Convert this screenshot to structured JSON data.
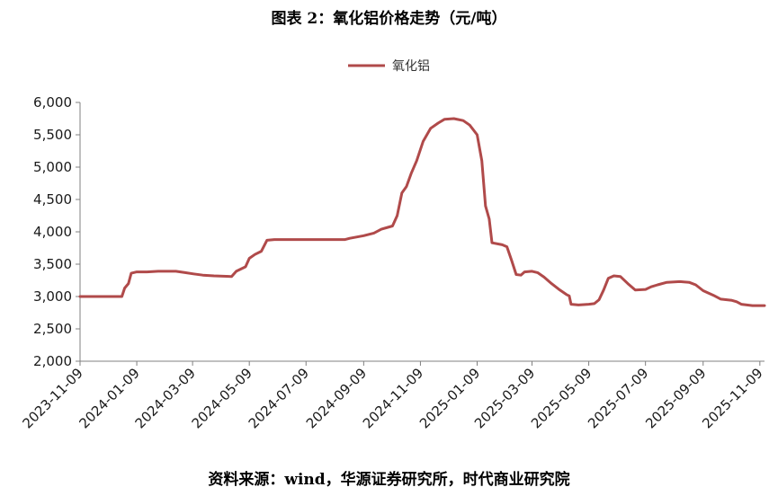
{
  "title": "图表 2：氧化铝价格走势（元/吨）",
  "source": "资料来源：wind，华源证券研究所，时代商业研究院",
  "colors": {
    "series": "#B04A4A",
    "axis": "#808080"
  },
  "chart_data": {
    "type": "line",
    "title": "图表 2：氧化铝价格走势（元/吨）",
    "legend_position": "top-center",
    "grid": false,
    "ylim": [
      2000,
      6000
    ],
    "yticks": [
      "2,000",
      "2,500",
      "3,000",
      "3,500",
      "4,000",
      "4,500",
      "5,000",
      "5,500",
      "6,000"
    ],
    "xlim": [
      "2023-11-09",
      "2025-11-14"
    ],
    "xticks": [
      "2023-11-09",
      "2024-01-09",
      "2024-03-09",
      "2024-05-09",
      "2024-07-09",
      "2024-09-09",
      "2024-11-09",
      "2025-01-09",
      "2025-03-09",
      "2025-05-09",
      "2025-07-09",
      "2025-09-09",
      "2025-11-09"
    ],
    "series": [
      {
        "name": "氧化铝",
        "points": [
          [
            "2023-11-09",
            3000
          ],
          [
            "2023-12-10",
            3000
          ],
          [
            "2023-12-24",
            3000
          ],
          [
            "2023-12-27",
            3130
          ],
          [
            "2023-12-31",
            3200
          ],
          [
            "2024-01-03",
            3360
          ],
          [
            "2024-01-09",
            3380
          ],
          [
            "2024-01-20",
            3380
          ],
          [
            "2024-02-01",
            3390
          ],
          [
            "2024-02-20",
            3390
          ],
          [
            "2024-03-01",
            3370
          ],
          [
            "2024-03-10",
            3350
          ],
          [
            "2024-03-20",
            3330
          ],
          [
            "2024-04-01",
            3320
          ],
          [
            "2024-04-20",
            3310
          ],
          [
            "2024-04-25",
            3390
          ],
          [
            "2024-05-05",
            3460
          ],
          [
            "2024-05-09",
            3590
          ],
          [
            "2024-05-15",
            3650
          ],
          [
            "2024-05-22",
            3700
          ],
          [
            "2024-05-28",
            3870
          ],
          [
            "2024-06-05",
            3880
          ],
          [
            "2024-06-20",
            3880
          ],
          [
            "2024-07-09",
            3880
          ],
          [
            "2024-08-01",
            3880
          ],
          [
            "2024-08-20",
            3880
          ],
          [
            "2024-08-25",
            3900
          ],
          [
            "2024-09-09",
            3940
          ],
          [
            "2024-09-20",
            3980
          ],
          [
            "2024-09-28",
            4040
          ],
          [
            "2024-10-05",
            4070
          ],
          [
            "2024-10-10",
            4090
          ],
          [
            "2024-10-15",
            4250
          ],
          [
            "2024-10-20",
            4600
          ],
          [
            "2024-10-25",
            4700
          ],
          [
            "2024-10-30",
            4900
          ],
          [
            "2024-11-05",
            5100
          ],
          [
            "2024-11-12",
            5400
          ],
          [
            "2024-11-20",
            5600
          ],
          [
            "2024-11-28",
            5680
          ],
          [
            "2024-12-05",
            5740
          ],
          [
            "2024-12-15",
            5750
          ],
          [
            "2024-12-25",
            5720
          ],
          [
            "2025-01-01",
            5650
          ],
          [
            "2025-01-09",
            5500
          ],
          [
            "2025-01-14",
            5100
          ],
          [
            "2025-01-18",
            4400
          ],
          [
            "2025-01-22",
            4200
          ],
          [
            "2025-01-25",
            3830
          ],
          [
            "2025-02-05",
            3800
          ],
          [
            "2025-02-10",
            3770
          ],
          [
            "2025-02-15",
            3560
          ],
          [
            "2025-02-20",
            3340
          ],
          [
            "2025-02-25",
            3330
          ],
          [
            "2025-03-01",
            3380
          ],
          [
            "2025-03-09",
            3390
          ],
          [
            "2025-03-15",
            3370
          ],
          [
            "2025-03-22",
            3300
          ],
          [
            "2025-03-30",
            3200
          ],
          [
            "2025-04-08",
            3100
          ],
          [
            "2025-04-15",
            3030
          ],
          [
            "2025-04-18",
            3010
          ],
          [
            "2025-04-20",
            2880
          ],
          [
            "2025-04-28",
            2870
          ],
          [
            "2025-05-09",
            2880
          ],
          [
            "2025-05-15",
            2890
          ],
          [
            "2025-05-20",
            2950
          ],
          [
            "2025-05-25",
            3100
          ],
          [
            "2025-05-30",
            3280
          ],
          [
            "2025-06-05",
            3320
          ],
          [
            "2025-06-12",
            3310
          ],
          [
            "2025-06-20",
            3200
          ],
          [
            "2025-06-28",
            3100
          ],
          [
            "2025-07-09",
            3110
          ],
          [
            "2025-07-15",
            3150
          ],
          [
            "2025-07-22",
            3180
          ],
          [
            "2025-08-01",
            3220
          ],
          [
            "2025-08-15",
            3230
          ],
          [
            "2025-08-25",
            3220
          ],
          [
            "2025-09-01",
            3180
          ],
          [
            "2025-09-09",
            3090
          ],
          [
            "2025-09-20",
            3020
          ],
          [
            "2025-09-28",
            2960
          ],
          [
            "2025-10-10",
            2940
          ],
          [
            "2025-10-15",
            2920
          ],
          [
            "2025-10-20",
            2880
          ],
          [
            "2025-11-01",
            2860
          ],
          [
            "2025-11-14",
            2860
          ]
        ]
      }
    ]
  }
}
